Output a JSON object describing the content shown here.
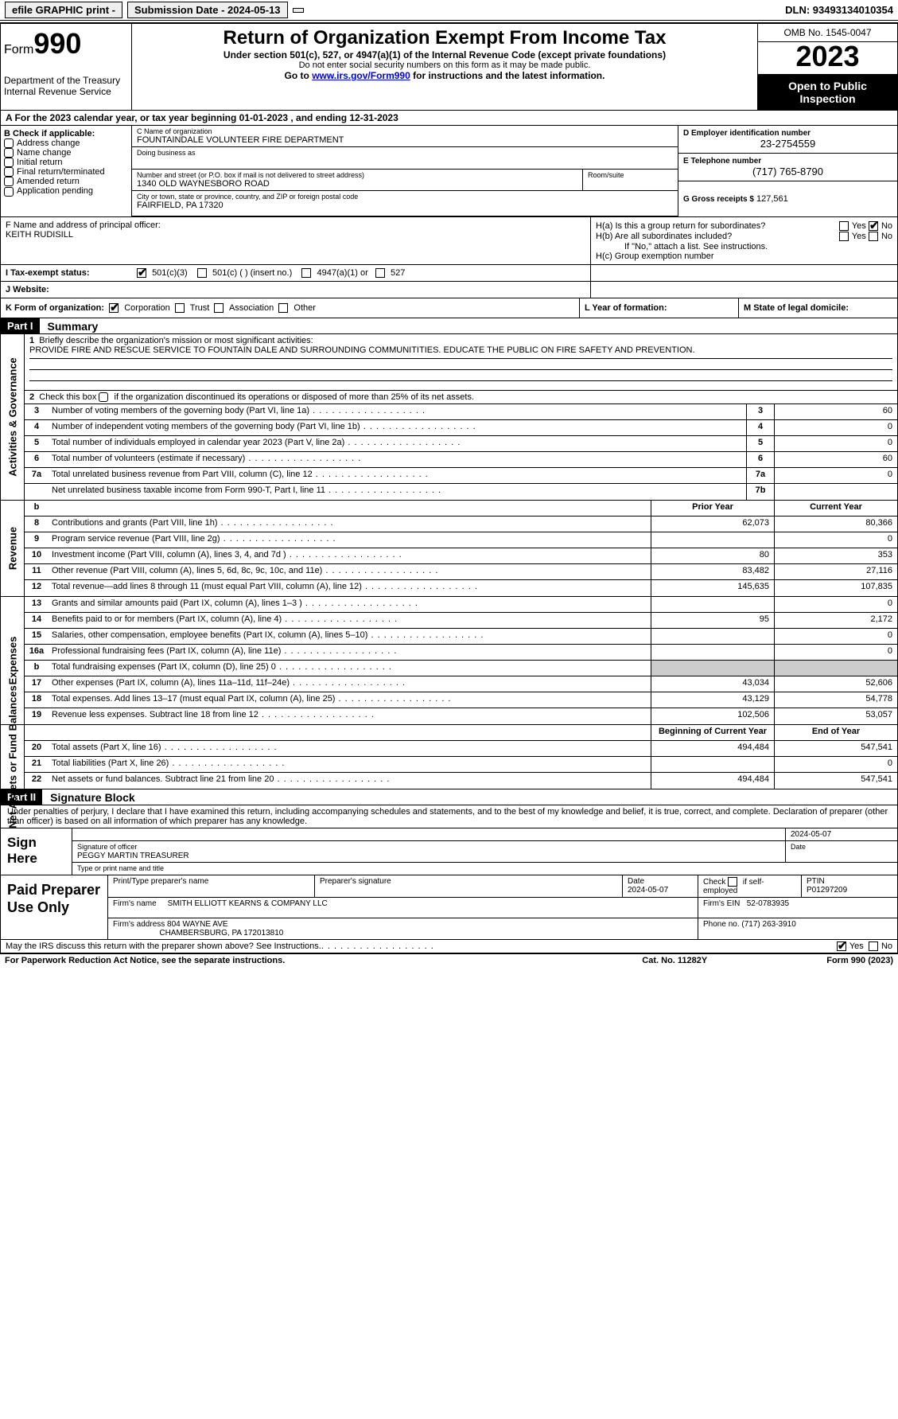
{
  "topbar": {
    "efile": "efile GRAPHIC print -",
    "submission": "Submission Date - 2024-05-13",
    "dln": "DLN: 93493134010354"
  },
  "header": {
    "form_label": "Form",
    "form_number": "990",
    "dept": "Department of the Treasury",
    "irs": "Internal Revenue Service",
    "title": "Return of Organization Exempt From Income Tax",
    "sub1": "Under section 501(c), 527, or 4947(a)(1) of the Internal Revenue Code (except private foundations)",
    "sub2": "Do not enter social security numbers on this form as it may be made public.",
    "sub3_pre": "Go to ",
    "sub3_link": "www.irs.gov/Form990",
    "sub3_post": " for instructions and the latest information.",
    "omb": "OMB No. 1545-0047",
    "year": "2023",
    "open": "Open to Public Inspection"
  },
  "row_a": "A  For the 2023 calendar year, or tax year beginning 01-01-2023   , and ending 12-31-2023",
  "section_b": {
    "label": "B Check if applicable:",
    "items": [
      "Address change",
      "Name change",
      "Initial return",
      "Final return/terminated",
      "Amended return",
      "Application pending"
    ]
  },
  "section_c": {
    "name_lbl": "C Name of organization",
    "name": "FOUNTAINDALE VOLUNTEER FIRE DEPARTMENT",
    "dba_lbl": "Doing business as",
    "street_lbl": "Number and street (or P.O. box if mail is not delivered to street address)",
    "street": "1340 OLD WAYNESBORO ROAD",
    "suite_lbl": "Room/suite",
    "city_lbl": "City or town, state or province, country, and ZIP or foreign postal code",
    "city": "FAIRFIELD, PA   17320"
  },
  "section_d": {
    "lbl": "D Employer identification number",
    "val": "23-2754559"
  },
  "section_e": {
    "lbl": "E Telephone number",
    "val": "(717) 765-8790"
  },
  "section_g": {
    "lbl": "G Gross receipts $",
    "val": "127,561"
  },
  "section_f": {
    "lbl": "F  Name and address of principal officer:",
    "name": "KEITH RUDISILL"
  },
  "section_h": {
    "ha": "H(a)  Is this a group return for subordinates?",
    "hb": "H(b)  Are all subordinates included?",
    "hb_note": "If \"No,\" attach a list. See instructions.",
    "hc": "H(c)  Group exemption number ",
    "yes": "Yes",
    "no": "No"
  },
  "row_i": {
    "label": "I   Tax-exempt status:",
    "opts": [
      "501(c)(3)",
      "501(c) (  ) (insert no.)",
      "4947(a)(1) or",
      "527"
    ]
  },
  "row_j": {
    "label": "J   Website:"
  },
  "row_k": {
    "label": "K Form of organization:",
    "opts": [
      "Corporation",
      "Trust",
      "Association",
      "Other"
    ],
    "l_lbl": "L Year of formation:",
    "m_lbl": "M State of legal domicile:"
  },
  "part1": {
    "header": "Part I",
    "title": "Summary"
  },
  "gov": {
    "label": "Activities & Governance",
    "q1": "Briefly describe the organization's mission or most significant activities:",
    "q1_val": "PROVIDE FIRE AND RESCUE SERVICE TO FOUNTAIN DALE AND SURROUNDING COMMUNITITIES. EDUCATE THE PUBLIC ON FIRE SAFETY AND PREVENTION.",
    "q2": "Check this box          if the organization discontinued its operations or disposed of more than 25% of its net assets.",
    "rows": [
      {
        "n": "3",
        "d": "Number of voting members of the governing body (Part VI, line 1a)",
        "box": "3",
        "v": "60"
      },
      {
        "n": "4",
        "d": "Number of independent voting members of the governing body (Part VI, line 1b)",
        "box": "4",
        "v": "0"
      },
      {
        "n": "5",
        "d": "Total number of individuals employed in calendar year 2023 (Part V, line 2a)",
        "box": "5",
        "v": "0"
      },
      {
        "n": "6",
        "d": "Total number of volunteers (estimate if necessary)",
        "box": "6",
        "v": "60"
      },
      {
        "n": "7a",
        "d": "Total unrelated business revenue from Part VIII, column (C), line 12",
        "box": "7a",
        "v": "0"
      },
      {
        "n": "",
        "d": "Net unrelated business taxable income from Form 990-T, Part I, line 11",
        "box": "7b",
        "v": ""
      }
    ]
  },
  "rev": {
    "label": "Revenue",
    "head_prior": "Prior Year",
    "head_cur": "Current Year",
    "rows": [
      {
        "n": "8",
        "d": "Contributions and grants (Part VIII, line 1h)",
        "p": "62,073",
        "c": "80,366"
      },
      {
        "n": "9",
        "d": "Program service revenue (Part VIII, line 2g)",
        "p": "",
        "c": "0"
      },
      {
        "n": "10",
        "d": "Investment income (Part VIII, column (A), lines 3, 4, and 7d )",
        "p": "80",
        "c": "353"
      },
      {
        "n": "11",
        "d": "Other revenue (Part VIII, column (A), lines 5, 6d, 8c, 9c, 10c, and 11e)",
        "p": "83,482",
        "c": "27,116"
      },
      {
        "n": "12",
        "d": "Total revenue—add lines 8 through 11 (must equal Part VIII, column (A), line 12)",
        "p": "145,635",
        "c": "107,835"
      }
    ]
  },
  "exp": {
    "label": "Expenses",
    "rows": [
      {
        "n": "13",
        "d": "Grants and similar amounts paid (Part IX, column (A), lines 1–3 )",
        "p": "",
        "c": "0"
      },
      {
        "n": "14",
        "d": "Benefits paid to or for members (Part IX, column (A), line 4)",
        "p": "95",
        "c": "2,172"
      },
      {
        "n": "15",
        "d": "Salaries, other compensation, employee benefits (Part IX, column (A), lines 5–10)",
        "p": "",
        "c": "0"
      },
      {
        "n": "16a",
        "d": "Professional fundraising fees (Part IX, column (A), line 11e)",
        "p": "",
        "c": "0"
      },
      {
        "n": "b",
        "d": "Total fundraising expenses (Part IX, column (D), line 25) 0",
        "p": "shade",
        "c": "shade"
      },
      {
        "n": "17",
        "d": "Other expenses (Part IX, column (A), lines 11a–11d, 11f–24e)",
        "p": "43,034",
        "c": "52,606"
      },
      {
        "n": "18",
        "d": "Total expenses. Add lines 13–17 (must equal Part IX, column (A), line 25)",
        "p": "43,129",
        "c": "54,778"
      },
      {
        "n": "19",
        "d": "Revenue less expenses. Subtract line 18 from line 12",
        "p": "102,506",
        "c": "53,057"
      }
    ]
  },
  "net": {
    "label": "Net Assets or Fund Balances",
    "head_beg": "Beginning of Current Year",
    "head_end": "End of Year",
    "rows": [
      {
        "n": "20",
        "d": "Total assets (Part X, line 16)",
        "p": "494,484",
        "c": "547,541"
      },
      {
        "n": "21",
        "d": "Total liabilities (Part X, line 26)",
        "p": "",
        "c": "0"
      },
      {
        "n": "22",
        "d": "Net assets or fund balances. Subtract line 21 from line 20",
        "p": "494,484",
        "c": "547,541"
      }
    ]
  },
  "part2": {
    "header": "Part II",
    "title": "Signature Block",
    "declaration": "Under penalties of perjury, I declare that I have examined this return, including accompanying schedules and statements, and to the best of my knowledge and belief, it is true, correct, and complete. Declaration of preparer (other than officer) is based on all information of which preparer has any knowledge."
  },
  "sign": {
    "label": "Sign Here",
    "date": "2024-05-07",
    "sig_lbl": "Signature of officer",
    "name": "PEGGY MARTIN  TREASURER",
    "name_lbl": "Type or print name and title",
    "date_lbl": "Date"
  },
  "paid": {
    "label": "Paid Preparer Use Only",
    "print_lbl": "Print/Type preparer's name",
    "sig_lbl": "Preparer's signature",
    "date_lbl": "Date",
    "date": "2024-05-07",
    "check_lbl": "Check          if self-employed",
    "ptin_lbl": "PTIN",
    "ptin": "P01297209",
    "firm_lbl": "Firm's name",
    "firm": "SMITH ELLIOTT KEARNS & COMPANY LLC",
    "ein_lbl": "Firm's EIN",
    "ein": "52-0783935",
    "addr_lbl": "Firm's address",
    "addr1": "804 WAYNE AVE",
    "addr2": "CHAMBERSBURG, PA   172013810",
    "phone_lbl": "Phone no.",
    "phone": "(717) 263-3910"
  },
  "discuss": "May the IRS discuss this return with the preparer shown above? See Instructions.",
  "footer": {
    "left": "For Paperwork Reduction Act Notice, see the separate instructions.",
    "mid": "Cat. No. 11282Y",
    "right": "Form 990 (2023)"
  },
  "yes": "Yes",
  "no": "No"
}
